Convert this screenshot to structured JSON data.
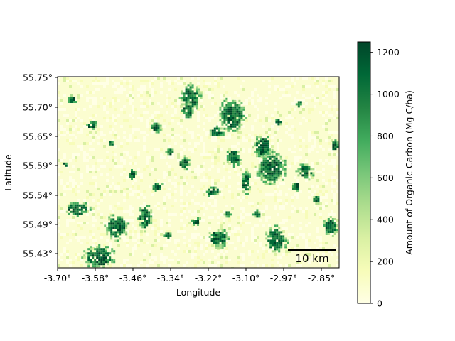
{
  "map": {
    "xlabel": "Longitude",
    "ylabel": "Latitude",
    "x_ticks": [
      "-3.70°",
      "-3.58°",
      "-3.46°",
      "-3.34°",
      "-3.22°",
      "-3.10°",
      "-2.97°",
      "-2.85°"
    ],
    "y_ticks": [
      "55.75°",
      "55.70°",
      "55.65°",
      "55.59°",
      "55.54°",
      "55.49°",
      "55.43°"
    ],
    "scalebar_label": "10 km",
    "colormap": [
      "#ffffe5",
      "#f7fcb9",
      "#d9f0a3",
      "#addd8e",
      "#78c679",
      "#41ab5d",
      "#238443",
      "#006837",
      "#004529"
    ]
  },
  "colorbar": {
    "label": "Amount of Organic Carbon (Mg C/ha)",
    "ticks": [
      "0",
      "200",
      "400",
      "600",
      "800",
      "1000",
      "1200"
    ],
    "range": [
      0,
      1250
    ]
  }
}
